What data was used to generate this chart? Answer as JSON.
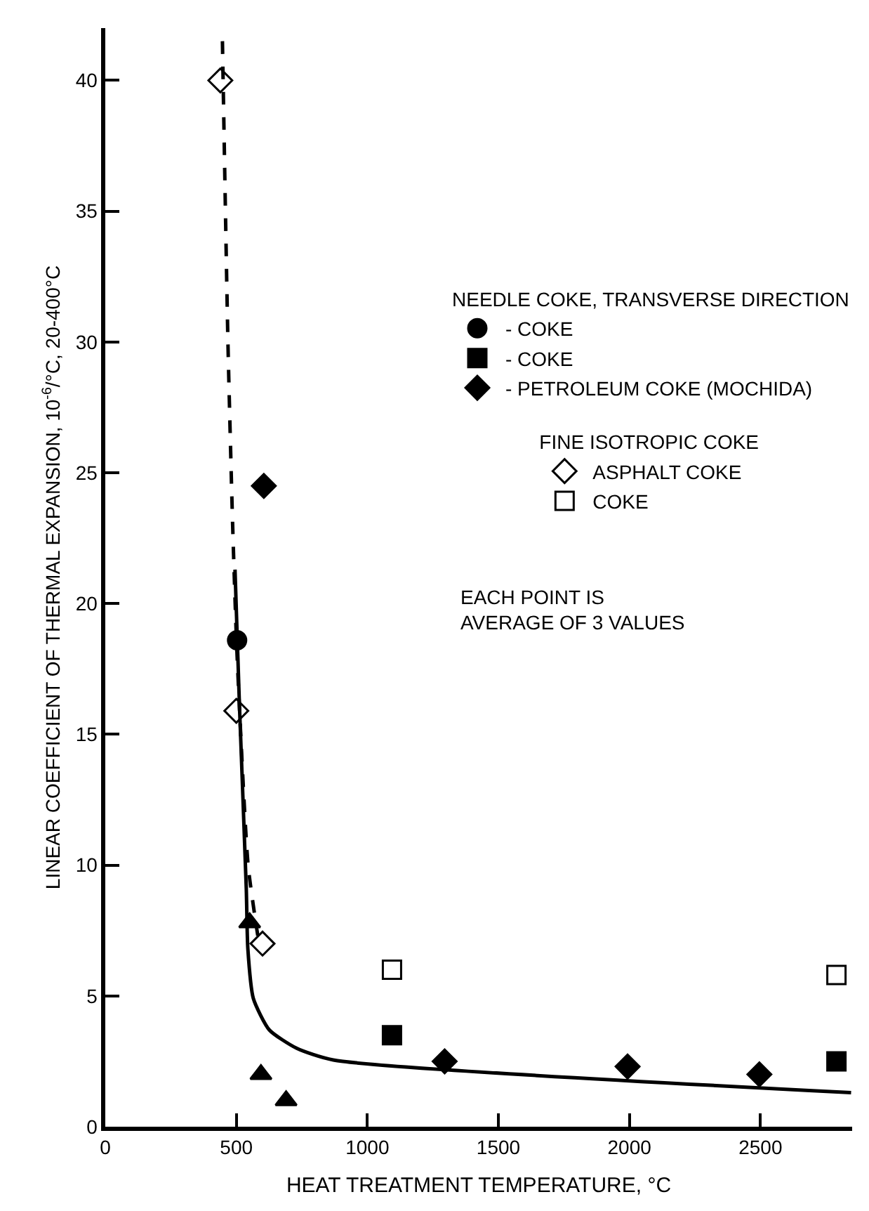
{
  "chart_data": {
    "type": "scatter",
    "xlabel": "HEAT TREATMENT TEMPERATURE, °C",
    "ylabel": "LINEAR COEFFICIENT OF THERMAL EXPANSION, 10$^{-6}$/°C, 20-400°C",
    "legend_title": [
      "NEEDLE COKE, TRANSVERSE DIRECTION",
      "FINE ISOTROPIC COKE"
    ],
    "annotations": [
      "EACH POINT IS\nAVERAGE OF 3 VALUES"
    ],
    "xlim": [
      0,
      2850
    ],
    "xticks": [
      0,
      500,
      1000,
      1500,
      2000,
      2500
    ],
    "ylim": [
      0,
      42
    ],
    "yticks": [
      0,
      5,
      10,
      15,
      20,
      25,
      30,
      35,
      40
    ],
    "legend": "top right",
    "series": [
      {
        "type": "line",
        "color": "#000000",
        "marker": "none",
        "line_style": "solid",
        "x": [
          495,
          512,
          538,
          544,
          565,
          626,
          730,
          870,
          2846
        ],
        "values": [
          21.3,
          16.1,
          9.1,
          6.8,
          4.9,
          3.7,
          3.0,
          2.55,
          1.3
        ]
      },
      {
        "type": "line",
        "color": "#000000",
        "marker": "none",
        "line_style": "dashed",
        "x": [
          447,
          468,
          486,
          503,
          545,
          582
        ],
        "values": [
          41.5,
          30,
          23,
          18,
          10,
          7.3
        ]
      },
      {
        "name": "- COKE",
        "color": "#000000",
        "marker": "circle",
        "x": [
          503
        ],
        "values": [
          18.6
        ]
      },
      {
        "color": "#000000",
        "marker": "triangle",
        "x": [
          551,
          594,
          690
        ],
        "values": [
          7.8,
          2.0,
          1.0
        ]
      },
      {
        "name": "- COKE",
        "color": "#000000",
        "marker": "square",
        "x": [
          1094,
          2790
        ],
        "values": [
          3.5,
          2.5
        ]
      },
      {
        "name": "- PETROLEUM COKE (MOCHIDA)",
        "color": "#000000",
        "marker": "diamond",
        "x": [
          605,
          1295,
          1993,
          2496
        ],
        "values": [
          24.5,
          2.5,
          2.3,
          2.0
        ]
      },
      {
        "name": "ASPHALT COKE",
        "color": "#000000",
        "marker": "diamond-open",
        "x": [
          439,
          500,
          600
        ],
        "values": [
          40,
          15.9,
          7.0
        ]
      },
      {
        "name": "COKE",
        "color": "#000000",
        "marker": "square-open",
        "x": [
          1094,
          2790
        ],
        "values": [
          6.0,
          5.8
        ]
      }
    ]
  }
}
